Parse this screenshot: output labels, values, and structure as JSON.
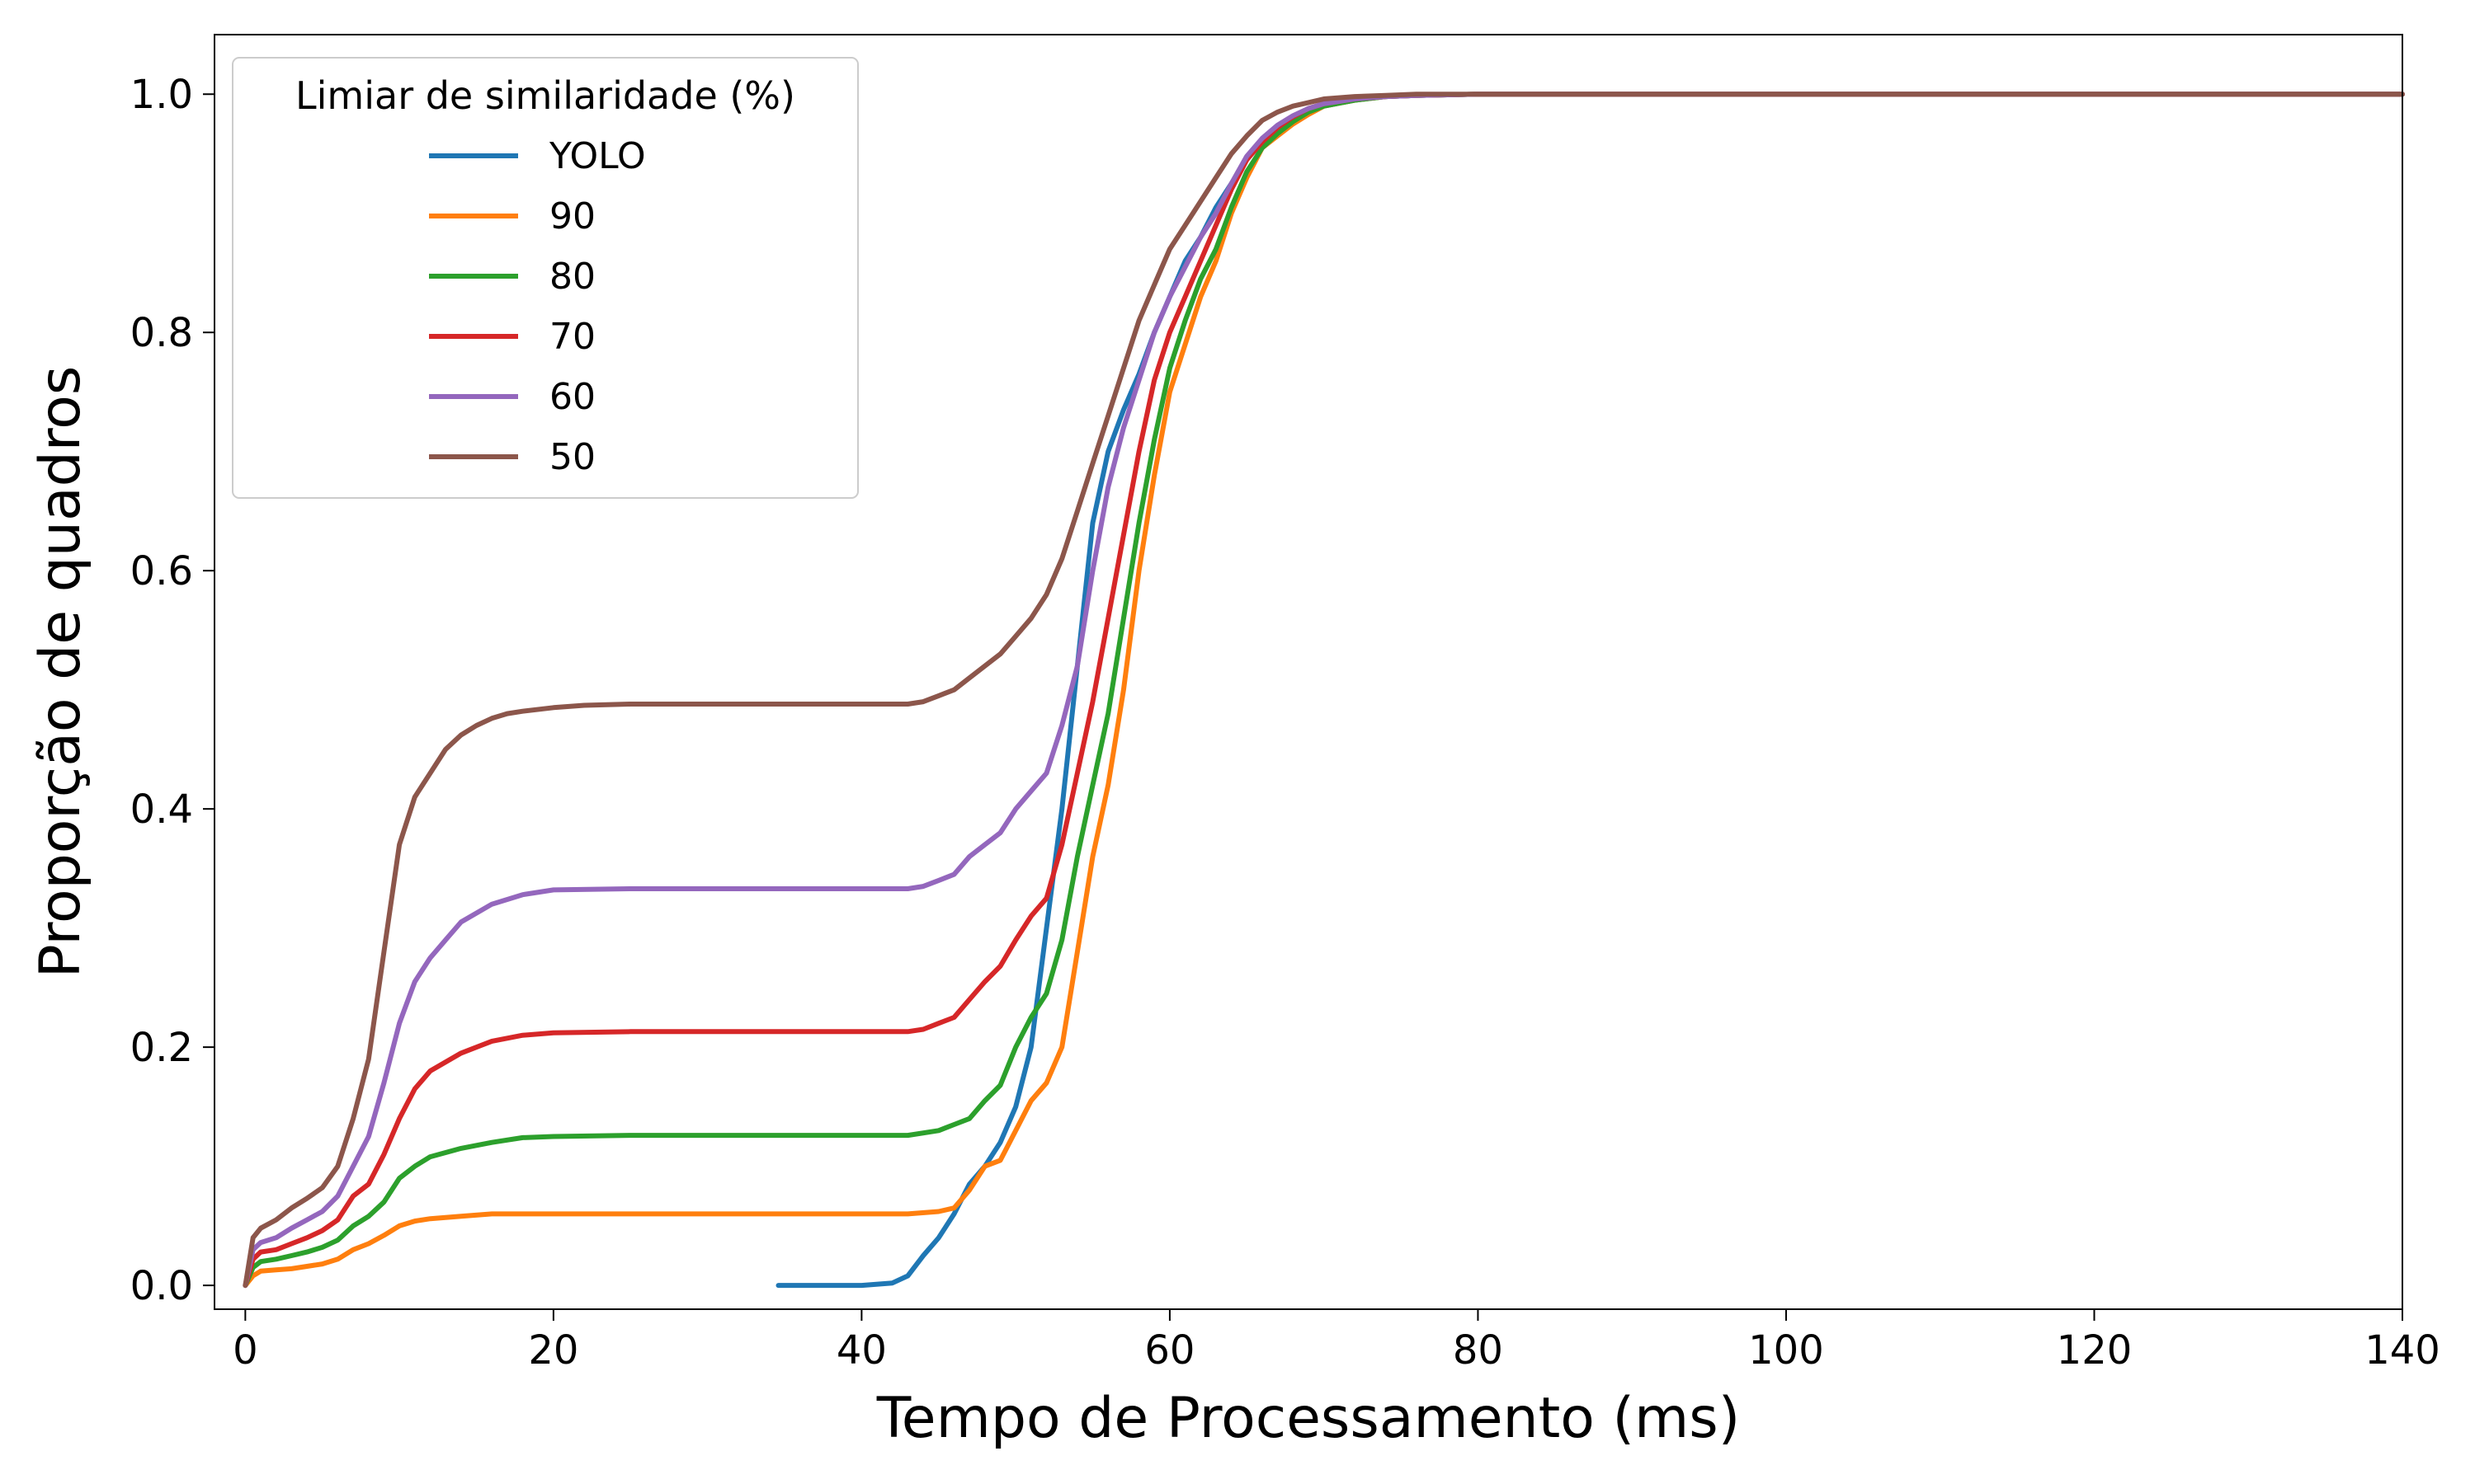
{
  "chart_data": {
    "type": "line",
    "xlabel": "Tempo de Processamento (ms)",
    "ylabel": "Proporção de quadros",
    "xlim": [
      -2,
      140
    ],
    "ylim": [
      -0.02,
      1.05
    ],
    "xticks": [
      0,
      20,
      40,
      60,
      80,
      100,
      120,
      140
    ],
    "yticks": [
      0.0,
      0.2,
      0.4,
      0.6,
      0.8,
      1.0
    ],
    "xtick_labels": [
      "0",
      "20",
      "40",
      "60",
      "80",
      "100",
      "120",
      "140"
    ],
    "ytick_labels": [
      "0.0",
      "0.2",
      "0.4",
      "0.6",
      "0.8",
      "1.0"
    ],
    "grid": false,
    "legend": {
      "title": "Limiar de similaridade (%)",
      "placement": "top-left"
    },
    "series": [
      {
        "name": "YOLO",
        "color": "#1f77b4",
        "x": [
          34.6,
          36,
          38,
          40,
          42,
          43,
          44,
          45,
          46,
          47,
          48,
          49,
          50,
          51,
          52,
          53,
          54,
          55,
          56,
          57,
          58,
          59,
          60,
          61,
          62,
          63,
          64,
          65,
          66,
          67,
          68,
          69,
          70,
          72,
          74,
          76,
          80,
          90,
          100,
          120,
          140
        ],
        "y": [
          0.0,
          0.0,
          0.0,
          0.0,
          0.002,
          0.008,
          0.025,
          0.04,
          0.06,
          0.085,
          0.1,
          0.12,
          0.15,
          0.2,
          0.3,
          0.4,
          0.52,
          0.64,
          0.7,
          0.735,
          0.765,
          0.8,
          0.83,
          0.86,
          0.88,
          0.905,
          0.925,
          0.945,
          0.96,
          0.97,
          0.98,
          0.986,
          0.99,
          0.995,
          0.998,
          0.999,
          1.0,
          1.0,
          1.0,
          1.0,
          1.0
        ]
      },
      {
        "name": "90",
        "color": "#ff7f0e",
        "x": [
          0,
          0.5,
          1,
          2,
          3,
          4,
          5,
          6,
          7,
          8,
          9,
          10,
          11,
          12,
          14,
          16,
          18,
          20,
          25,
          30,
          35,
          40,
          43,
          45,
          46,
          47,
          48,
          49,
          50,
          51,
          52,
          53,
          54,
          55,
          56,
          57,
          58,
          59,
          60,
          61,
          62,
          63,
          64,
          65,
          66,
          67,
          68,
          69,
          70,
          72,
          74,
          76,
          80,
          90,
          100,
          120,
          140
        ],
        "y": [
          0.0,
          0.008,
          0.012,
          0.013,
          0.014,
          0.016,
          0.018,
          0.022,
          0.03,
          0.035,
          0.042,
          0.05,
          0.054,
          0.056,
          0.058,
          0.06,
          0.06,
          0.06,
          0.06,
          0.06,
          0.06,
          0.06,
          0.06,
          0.062,
          0.065,
          0.08,
          0.1,
          0.105,
          0.13,
          0.155,
          0.17,
          0.2,
          0.28,
          0.36,
          0.42,
          0.5,
          0.6,
          0.68,
          0.75,
          0.79,
          0.83,
          0.86,
          0.9,
          0.93,
          0.955,
          0.965,
          0.975,
          0.983,
          0.99,
          0.995,
          0.998,
          0.999,
          1.0,
          1.0,
          1.0,
          1.0,
          1.0
        ]
      },
      {
        "name": "80",
        "color": "#2ca02c",
        "x": [
          0,
          0.5,
          1,
          2,
          3,
          4,
          5,
          6,
          7,
          8,
          9,
          10,
          11,
          12,
          14,
          16,
          18,
          20,
          25,
          30,
          35,
          40,
          43,
          45,
          46,
          47,
          48,
          49,
          50,
          51,
          52,
          53,
          54,
          55,
          56,
          57,
          58,
          59,
          60,
          61,
          62,
          63,
          64,
          65,
          66,
          67,
          68,
          69,
          70,
          72,
          74,
          76,
          80,
          90,
          100,
          120,
          140
        ],
        "y": [
          0.0,
          0.015,
          0.02,
          0.022,
          0.025,
          0.028,
          0.032,
          0.038,
          0.05,
          0.058,
          0.07,
          0.09,
          0.1,
          0.108,
          0.115,
          0.12,
          0.124,
          0.125,
          0.126,
          0.126,
          0.126,
          0.126,
          0.126,
          0.13,
          0.135,
          0.14,
          0.155,
          0.168,
          0.2,
          0.225,
          0.245,
          0.29,
          0.36,
          0.42,
          0.48,
          0.56,
          0.64,
          0.71,
          0.77,
          0.81,
          0.845,
          0.87,
          0.905,
          0.935,
          0.955,
          0.967,
          0.977,
          0.985,
          0.99,
          0.995,
          0.998,
          0.999,
          1.0,
          1.0,
          1.0,
          1.0,
          1.0
        ]
      },
      {
        "name": "70",
        "color": "#d62728",
        "x": [
          0,
          0.5,
          1,
          2,
          3,
          4,
          5,
          6,
          7,
          8,
          9,
          10,
          11,
          12,
          14,
          16,
          18,
          20,
          25,
          30,
          35,
          40,
          43,
          44,
          45,
          46,
          47,
          48,
          49,
          50,
          51,
          52,
          53,
          54,
          55,
          56,
          57,
          58,
          59,
          60,
          61,
          62,
          63,
          64,
          65,
          66,
          67,
          68,
          69,
          70,
          72,
          74,
          76,
          80,
          90,
          100,
          120,
          140
        ],
        "y": [
          0.0,
          0.022,
          0.028,
          0.03,
          0.035,
          0.04,
          0.046,
          0.055,
          0.075,
          0.085,
          0.11,
          0.14,
          0.165,
          0.18,
          0.195,
          0.205,
          0.21,
          0.212,
          0.213,
          0.213,
          0.213,
          0.213,
          0.213,
          0.215,
          0.22,
          0.225,
          0.24,
          0.255,
          0.268,
          0.29,
          0.31,
          0.325,
          0.37,
          0.43,
          0.49,
          0.56,
          0.63,
          0.7,
          0.76,
          0.8,
          0.83,
          0.86,
          0.89,
          0.92,
          0.945,
          0.96,
          0.972,
          0.981,
          0.988,
          0.992,
          0.996,
          0.998,
          0.999,
          1.0,
          1.0,
          1.0,
          1.0,
          1.0
        ]
      },
      {
        "name": "60",
        "color": "#9467bd",
        "x": [
          0,
          0.5,
          1,
          2,
          3,
          4,
          5,
          6,
          7,
          8,
          9,
          10,
          11,
          12,
          13,
          14,
          16,
          18,
          20,
          25,
          30,
          35,
          40,
          43,
          44,
          45,
          46,
          47,
          48,
          49,
          50,
          51,
          52,
          53,
          54,
          55,
          56,
          57,
          58,
          59,
          60,
          61,
          62,
          63,
          64,
          65,
          66,
          67,
          68,
          69,
          70,
          72,
          74,
          76,
          80,
          90,
          100,
          120,
          140
        ],
        "y": [
          0.0,
          0.03,
          0.036,
          0.04,
          0.048,
          0.055,
          0.062,
          0.075,
          0.1,
          0.125,
          0.17,
          0.22,
          0.255,
          0.275,
          0.29,
          0.305,
          0.32,
          0.328,
          0.332,
          0.333,
          0.333,
          0.333,
          0.333,
          0.333,
          0.335,
          0.34,
          0.345,
          0.36,
          0.37,
          0.38,
          0.4,
          0.415,
          0.43,
          0.47,
          0.52,
          0.6,
          0.67,
          0.72,
          0.76,
          0.8,
          0.83,
          0.855,
          0.88,
          0.9,
          0.925,
          0.948,
          0.963,
          0.974,
          0.982,
          0.988,
          0.992,
          0.996,
          0.998,
          0.999,
          1.0,
          1.0,
          1.0,
          1.0,
          1.0
        ]
      },
      {
        "name": "50",
        "color": "#8c564b",
        "x": [
          0,
          0.5,
          1,
          2,
          3,
          4,
          5,
          6,
          7,
          8,
          9,
          10,
          11,
          12,
          13,
          14,
          15,
          16,
          17,
          18,
          20,
          22,
          25,
          30,
          35,
          40,
          43,
          44,
          45,
          46,
          47,
          48,
          49,
          50,
          51,
          52,
          53,
          54,
          55,
          56,
          57,
          58,
          59,
          60,
          61,
          62,
          63,
          64,
          65,
          66,
          67,
          68,
          69,
          70,
          72,
          74,
          76,
          80,
          90,
          100,
          120,
          140
        ],
        "y": [
          0.0,
          0.04,
          0.048,
          0.055,
          0.065,
          0.073,
          0.082,
          0.1,
          0.14,
          0.19,
          0.28,
          0.37,
          0.41,
          0.43,
          0.45,
          0.462,
          0.47,
          0.476,
          0.48,
          0.482,
          0.485,
          0.487,
          0.488,
          0.488,
          0.488,
          0.488,
          0.488,
          0.49,
          0.495,
          0.5,
          0.51,
          0.52,
          0.53,
          0.545,
          0.56,
          0.58,
          0.61,
          0.65,
          0.69,
          0.73,
          0.77,
          0.81,
          0.84,
          0.87,
          0.89,
          0.91,
          0.93,
          0.95,
          0.965,
          0.978,
          0.985,
          0.99,
          0.993,
          0.996,
          0.998,
          0.999,
          1.0,
          1.0,
          1.0,
          1.0,
          1.0,
          1.0
        ]
      }
    ]
  }
}
